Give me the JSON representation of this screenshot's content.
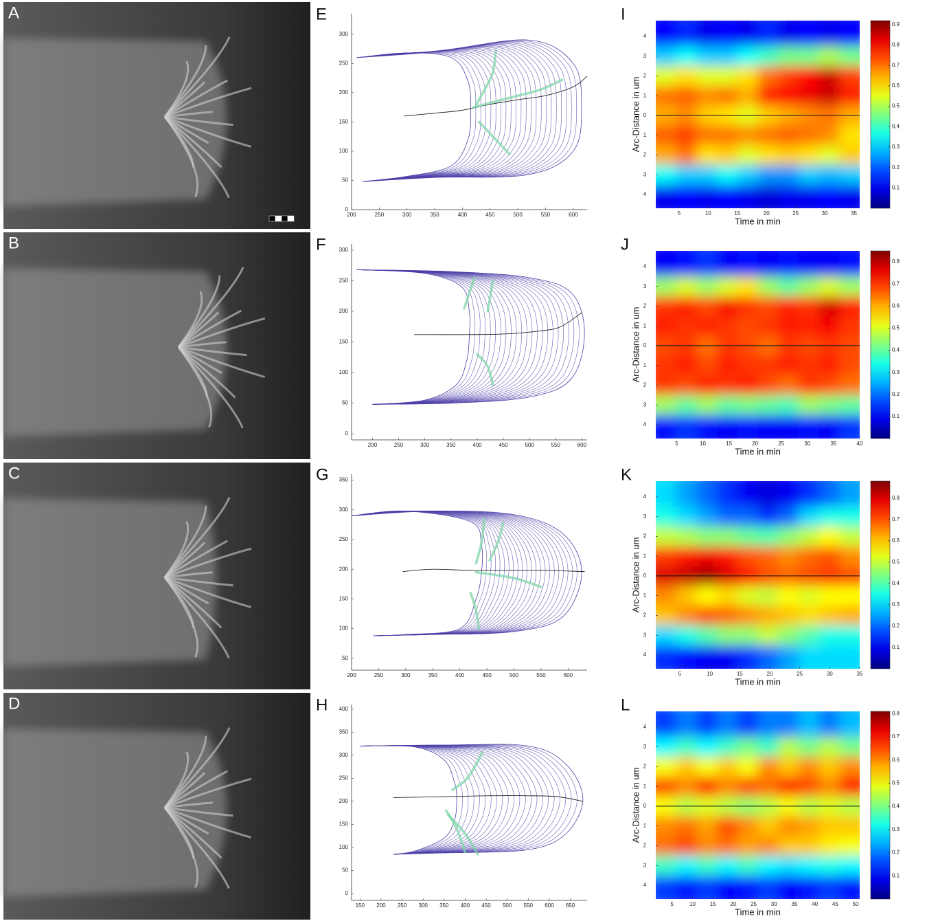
{
  "images": [
    {
      "label": "A"
    },
    {
      "label": "B"
    },
    {
      "label": "C"
    },
    {
      "label": "D"
    }
  ],
  "chart_data": [
    {
      "type": "line",
      "label": "E",
      "xlim": [
        200,
        625
      ],
      "ylim": [
        0,
        335
      ],
      "xticks": [
        200,
        250,
        300,
        350,
        400,
        450,
        500,
        550,
        600
      ],
      "yticks": [
        0,
        50,
        100,
        150,
        200,
        250,
        300
      ],
      "series": [
        {
          "color": "#4b3fa8",
          "x": [
            210,
            300,
            380,
            410,
            415,
            410,
            380,
            300,
            220
          ],
          "y": [
            260,
            268,
            260,
            220,
            170,
            120,
            75,
            57,
            48
          ]
        },
        {
          "color": "#4b3fa8",
          "x": [
            210,
            350,
            520,
            600,
            615,
            600,
            520,
            350,
            220
          ],
          "y": [
            260,
            270,
            290,
            250,
            175,
            100,
            60,
            55,
            48
          ]
        },
        {
          "color": "#222222",
          "x": [
            295,
            350,
            400,
            450,
            500,
            550,
            600,
            625
          ],
          "y": [
            160,
            165,
            170,
            180,
            188,
            195,
            210,
            228
          ]
        },
        {
          "color": "#7fd6a8",
          "x": [
            460,
            455,
            440,
            425
          ],
          "y": [
            270,
            235,
            205,
            180
          ]
        },
        {
          "color": "#7fd6a8",
          "x": [
            420,
            480,
            540,
            580
          ],
          "y": [
            175,
            190,
            205,
            222
          ]
        },
        {
          "color": "#7fd6a8",
          "x": [
            430,
            460,
            485
          ],
          "y": [
            150,
            120,
            95
          ]
        }
      ]
    },
    {
      "type": "heatmap",
      "label": "I",
      "xlabel": "Time in min",
      "ylabel": "Arc-Distance in um",
      "xlim": [
        1,
        36
      ],
      "ylim": [
        -4.7,
        4.8
      ],
      "xticks": [
        5,
        10,
        15,
        20,
        25,
        30,
        35
      ],
      "yticks": [
        4,
        3,
        2,
        1,
        0,
        {
          "value": -1,
          "label": "1"
        },
        {
          "value": -2,
          "label": "2"
        },
        {
          "value": -3,
          "label": "3"
        },
        {
          "value": -4,
          "label": "4"
        }
      ],
      "clim": [
        0,
        0.92
      ],
      "cticks": [
        0.1,
        0.2,
        0.3,
        0.4,
        0.5,
        0.6,
        0.7,
        0.8,
        0.9
      ],
      "y": [
        4,
        3,
        2,
        1,
        0,
        -1,
        -2,
        -3,
        -4
      ],
      "z": [
        [
          0.12,
          0.15,
          0.1,
          0.12,
          0.1,
          0.15,
          0.1,
          0.12,
          0.1,
          0.12
        ],
        [
          0.3,
          0.35,
          0.3,
          0.3,
          0.35,
          0.4,
          0.45,
          0.45,
          0.5,
          0.45
        ],
        [
          0.55,
          0.6,
          0.55,
          0.55,
          0.6,
          0.7,
          0.75,
          0.8,
          0.85,
          0.75
        ],
        [
          0.7,
          0.72,
          0.68,
          0.7,
          0.65,
          0.78,
          0.8,
          0.82,
          0.85,
          0.78
        ],
        [
          0.65,
          0.68,
          0.62,
          0.6,
          0.55,
          0.62,
          0.65,
          0.68,
          0.7,
          0.65
        ],
        [
          0.72,
          0.75,
          0.7,
          0.7,
          0.68,
          0.7,
          0.72,
          0.7,
          0.68,
          0.6
        ],
        [
          0.65,
          0.7,
          0.6,
          0.62,
          0.55,
          0.6,
          0.62,
          0.6,
          0.55,
          0.62
        ],
        [
          0.35,
          0.3,
          0.3,
          0.35,
          0.3,
          0.25,
          0.25,
          0.3,
          0.28,
          0.3
        ],
        [
          0.1,
          0.12,
          0.1,
          0.12,
          0.1,
          0.08,
          0.1,
          0.1,
          0.12,
          0.1
        ]
      ]
    },
    {
      "type": "line",
      "label": "F",
      "xlim": [
        160,
        610
      ],
      "ylim": [
        -10,
        310
      ],
      "xticks": [
        200,
        250,
        300,
        350,
        400,
        450,
        500,
        550,
        600
      ],
      "yticks": [
        0,
        50,
        100,
        150,
        200,
        250,
        300
      ],
      "series": [
        {
          "color": "#4b3fa8",
          "x": [
            170,
            300,
            370,
            385,
            385,
            380,
            360,
            300,
            200
          ],
          "y": [
            268,
            262,
            240,
            200,
            160,
            120,
            80,
            55,
            48
          ]
        },
        {
          "color": "#4b3fa8",
          "x": [
            170,
            350,
            500,
            580,
            605,
            580,
            500,
            350,
            200
          ],
          "y": [
            268,
            265,
            255,
            230,
            165,
            90,
            60,
            50,
            48
          ]
        },
        {
          "color": "#222222",
          "x": [
            280,
            380,
            450,
            520,
            560,
            600
          ],
          "y": [
            162,
            162,
            163,
            168,
            175,
            198
          ]
        },
        {
          "color": "#7fd6a8",
          "x": [
            395,
            385,
            375
          ],
          "y": [
            255,
            230,
            205
          ]
        },
        {
          "color": "#7fd6a8",
          "x": [
            430,
            425,
            420
          ],
          "y": [
            250,
            225,
            200
          ]
        },
        {
          "color": "#7fd6a8",
          "x": [
            400,
            420,
            430
          ],
          "y": [
            130,
            110,
            80
          ]
        }
      ]
    },
    {
      "type": "heatmap",
      "label": "J",
      "xlabel": "Time in min",
      "ylabel": "Arc-Distance in um",
      "xlim": [
        1,
        40
      ],
      "ylim": [
        -4.7,
        4.8
      ],
      "xticks": [
        5,
        10,
        15,
        20,
        25,
        30,
        35,
        40
      ],
      "yticks": [
        4,
        3,
        2,
        1,
        0,
        {
          "value": -1,
          "label": "1"
        },
        {
          "value": -2,
          "label": "2"
        },
        {
          "value": -3,
          "label": "3"
        },
        {
          "value": -4,
          "label": "4"
        }
      ],
      "clim": [
        0,
        0.85
      ],
      "cticks": [
        0.1,
        0.2,
        0.3,
        0.4,
        0.5,
        0.6,
        0.7,
        0.8
      ],
      "y": [
        4,
        3,
        2,
        1,
        0,
        -1,
        -2,
        -3,
        -4
      ],
      "z": [
        [
          0.1,
          0.12,
          0.15,
          0.1,
          0.12,
          0.1,
          0.12,
          0.1,
          0.1,
          0.12
        ],
        [
          0.45,
          0.5,
          0.45,
          0.5,
          0.55,
          0.45,
          0.4,
          0.45,
          0.5,
          0.45
        ],
        [
          0.7,
          0.72,
          0.68,
          0.75,
          0.7,
          0.68,
          0.72,
          0.7,
          0.78,
          0.72
        ],
        [
          0.72,
          0.7,
          0.72,
          0.7,
          0.68,
          0.7,
          0.72,
          0.72,
          0.75,
          0.7
        ],
        [
          0.68,
          0.7,
          0.65,
          0.7,
          0.68,
          0.65,
          0.7,
          0.68,
          0.7,
          0.68
        ],
        [
          0.7,
          0.72,
          0.68,
          0.72,
          0.7,
          0.7,
          0.72,
          0.7,
          0.72,
          0.68
        ],
        [
          0.7,
          0.68,
          0.72,
          0.7,
          0.72,
          0.68,
          0.65,
          0.7,
          0.68,
          0.65
        ],
        [
          0.45,
          0.4,
          0.45,
          0.4,
          0.42,
          0.4,
          0.38,
          0.45,
          0.42,
          0.4
        ],
        [
          0.12,
          0.15,
          0.12,
          0.1,
          0.12,
          0.1,
          0.1,
          0.12,
          0.1,
          0.15
        ]
      ]
    },
    {
      "type": "line",
      "label": "G",
      "xlim": [
        200,
        635
      ],
      "ylim": [
        30,
        360
      ],
      "xticks": [
        200,
        250,
        300,
        350,
        400,
        450,
        500,
        550,
        600
      ],
      "yticks": [
        50,
        100,
        150,
        200,
        250,
        300,
        350
      ],
      "series": [
        {
          "color": "#4b3fa8",
          "x": [
            200,
            300,
            420,
            440,
            440,
            430,
            400,
            300,
            240
          ],
          "y": [
            290,
            298,
            280,
            240,
            195,
            150,
            100,
            90,
            88
          ]
        },
        {
          "color": "#4b3fa8",
          "x": [
            200,
            350,
            500,
            590,
            625,
            590,
            500,
            350,
            240
          ],
          "y": [
            290,
            298,
            292,
            260,
            195,
            120,
            95,
            90,
            88
          ]
        },
        {
          "color": "#222222",
          "x": [
            295,
            350,
            420,
            500,
            560,
            630
          ],
          "y": [
            196,
            200,
            198,
            198,
            198,
            196
          ]
        },
        {
          "color": "#7fd6a8",
          "x": [
            445,
            440,
            430
          ],
          "y": [
            285,
            245,
            210
          ]
        },
        {
          "color": "#7fd6a8",
          "x": [
            480,
            470,
            455
          ],
          "y": [
            278,
            245,
            215
          ]
        },
        {
          "color": "#7fd6a8",
          "x": [
            430,
            500,
            550
          ],
          "y": [
            195,
            185,
            170
          ]
        },
        {
          "color": "#7fd6a8",
          "x": [
            420,
            430,
            435
          ],
          "y": [
            160,
            130,
            100
          ]
        }
      ]
    },
    {
      "type": "heatmap",
      "label": "K",
      "xlabel": "Time in min",
      "ylabel": "Arc-Distance in um",
      "xlim": [
        1,
        35
      ],
      "ylim": [
        -4.7,
        4.8
      ],
      "xticks": [
        5,
        10,
        15,
        20,
        25,
        30,
        35
      ],
      "yticks": [
        4,
        3,
        2,
        1,
        0,
        {
          "value": -1,
          "label": "1"
        },
        {
          "value": -2,
          "label": "2"
        },
        {
          "value": -3,
          "label": "3"
        },
        {
          "value": -4,
          "label": "4"
        }
      ],
      "clim": [
        0,
        0.88
      ],
      "cticks": [
        0.1,
        0.2,
        0.3,
        0.4,
        0.5,
        0.6,
        0.7,
        0.8
      ],
      "y": [
        4,
        3,
        2,
        1,
        0,
        -1,
        -2,
        -3,
        -4
      ],
      "z": [
        [
          0.3,
          0.25,
          0.2,
          0.15,
          0.1,
          0.08,
          0.1,
          0.15,
          0.2,
          0.25
        ],
        [
          0.35,
          0.3,
          0.25,
          0.2,
          0.2,
          0.15,
          0.2,
          0.3,
          0.35,
          0.35
        ],
        [
          0.5,
          0.48,
          0.45,
          0.45,
          0.42,
          0.4,
          0.45,
          0.5,
          0.55,
          0.5
        ],
        [
          0.72,
          0.75,
          0.78,
          0.75,
          0.7,
          0.68,
          0.65,
          0.68,
          0.7,
          0.65
        ],
        [
          0.8,
          0.82,
          0.85,
          0.8,
          0.75,
          0.7,
          0.68,
          0.7,
          0.72,
          0.7
        ],
        [
          0.65,
          0.6,
          0.55,
          0.58,
          0.52,
          0.5,
          0.55,
          0.52,
          0.55,
          0.55
        ],
        [
          0.6,
          0.65,
          0.7,
          0.68,
          0.65,
          0.62,
          0.6,
          0.58,
          0.6,
          0.62
        ],
        [
          0.3,
          0.35,
          0.4,
          0.45,
          0.45,
          0.5,
          0.45,
          0.4,
          0.35,
          0.35
        ],
        [
          0.15,
          0.12,
          0.1,
          0.1,
          0.15,
          0.2,
          0.25,
          0.3,
          0.3,
          0.3
        ]
      ]
    },
    {
      "type": "line",
      "label": "H",
      "xlim": [
        130,
        690
      ],
      "ylim": [
        -15,
        410
      ],
      "xticks": [
        150,
        200,
        250,
        300,
        350,
        400,
        450,
        500,
        550,
        600,
        650
      ],
      "yticks": [
        0,
        50,
        100,
        150,
        200,
        250,
        300,
        350,
        400
      ],
      "series": [
        {
          "color": "#4b3fa8",
          "x": [
            150,
            280,
            350,
            375,
            380,
            375,
            350,
            280,
            230
          ],
          "y": [
            320,
            318,
            290,
            240,
            205,
            160,
            120,
            92,
            85
          ]
        },
        {
          "color": "#4b3fa8",
          "x": [
            150,
            350,
            550,
            640,
            680,
            640,
            550,
            350,
            230
          ],
          "y": [
            320,
            322,
            320,
            280,
            205,
            130,
            95,
            88,
            85
          ]
        },
        {
          "color": "#222222",
          "x": [
            230,
            350,
            450,
            550,
            620,
            680
          ],
          "y": [
            208,
            210,
            212,
            212,
            210,
            200
          ]
        },
        {
          "color": "#7fd6a8",
          "x": [
            440,
            420,
            400,
            370
          ],
          "y": [
            305,
            270,
            245,
            225
          ]
        },
        {
          "color": "#7fd6a8",
          "x": [
            360,
            400,
            430
          ],
          "y": [
            170,
            130,
            85
          ]
        },
        {
          "color": "#7fd6a8",
          "x": [
            355,
            380,
            400
          ],
          "y": [
            180,
            140,
            90
          ]
        }
      ]
    },
    {
      "type": "heatmap",
      "label": "L",
      "xlabel": "Time in min",
      "ylabel": "Arc-Distance in um",
      "xlim": [
        1,
        51
      ],
      "ylim": [
        -4.7,
        4.8
      ],
      "xticks": [
        5,
        10,
        15,
        20,
        25,
        30,
        35,
        40,
        45,
        50
      ],
      "yticks": [
        4,
        3,
        2,
        1,
        0,
        {
          "value": -1,
          "label": "1"
        },
        {
          "value": -2,
          "label": "2"
        },
        {
          "value": -3,
          "label": "3"
        },
        {
          "value": -4,
          "label": "4"
        }
      ],
      "clim": [
        0,
        0.81
      ],
      "cticks": [
        0.1,
        0.2,
        0.3,
        0.4,
        0.5,
        0.6,
        0.7,
        0.8
      ],
      "y": [
        4,
        3,
        2,
        1,
        0,
        -1,
        -2,
        -3,
        -4
      ],
      "z": [
        [
          0.15,
          0.2,
          0.15,
          0.2,
          0.15,
          0.2,
          0.2,
          0.25,
          0.2,
          0.25
        ],
        [
          0.3,
          0.35,
          0.3,
          0.35,
          0.4,
          0.35,
          0.45,
          0.4,
          0.45,
          0.4
        ],
        [
          0.5,
          0.55,
          0.5,
          0.55,
          0.5,
          0.6,
          0.55,
          0.6,
          0.55,
          0.6
        ],
        [
          0.65,
          0.6,
          0.68,
          0.6,
          0.65,
          0.62,
          0.68,
          0.65,
          0.6,
          0.68
        ],
        [
          0.5,
          0.45,
          0.48,
          0.45,
          0.42,
          0.45,
          0.5,
          0.45,
          0.48,
          0.45
        ],
        [
          0.6,
          0.62,
          0.58,
          0.65,
          0.6,
          0.55,
          0.6,
          0.58,
          0.55,
          0.55
        ],
        [
          0.62,
          0.65,
          0.6,
          0.62,
          0.58,
          0.6,
          0.55,
          0.55,
          0.52,
          0.5
        ],
        [
          0.35,
          0.3,
          0.35,
          0.3,
          0.35,
          0.3,
          0.28,
          0.3,
          0.32,
          0.3
        ],
        [
          0.15,
          0.12,
          0.15,
          0.1,
          0.12,
          0.15,
          0.1,
          0.12,
          0.15,
          0.12
        ]
      ]
    }
  ]
}
